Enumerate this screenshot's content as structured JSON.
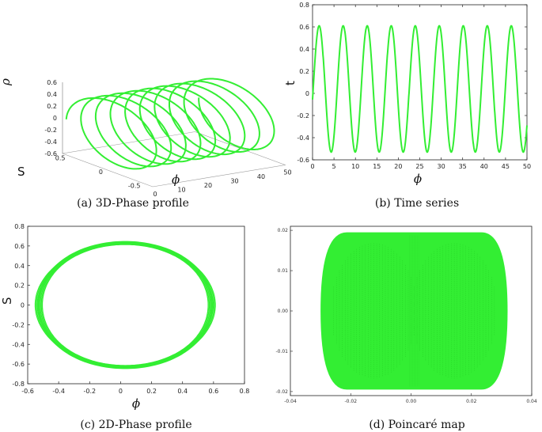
{
  "chart_data": [
    {
      "id": "a",
      "type": "line3d",
      "caption": "(a) 3D-Phase profile",
      "xlabel": "ϕ",
      "ylabel": "S",
      "zlabel": "ρ",
      "xticks": [
        "0",
        "10",
        "20",
        "30",
        "40",
        "50"
      ],
      "yticks": [
        "0.5",
        "0",
        "-0.5"
      ],
      "zticks": [
        "0.6",
        "0.4",
        "0.2",
        "0",
        "-0.2",
        "-0.4",
        "-0.6"
      ],
      "xlim": [
        0,
        50
      ],
      "ylim": [
        -0.6,
        0.6
      ],
      "zlim": [
        -0.6,
        0.6
      ],
      "loops": 9,
      "color": "#33ee33"
    },
    {
      "id": "b",
      "type": "line",
      "caption": "(b) Time series",
      "xlabel": "ϕ",
      "ylabel": "t",
      "xticks": [
        "0",
        "5",
        "10",
        "15",
        "20",
        "25",
        "30",
        "35",
        "40",
        "45",
        "50"
      ],
      "yticks": [
        "0.8",
        "0.6",
        "0.4",
        "0.2",
        "0",
        "-0.2",
        "-0.4",
        "-0.6"
      ],
      "xlim": [
        0,
        50
      ],
      "ylim": [
        -0.6,
        0.8
      ],
      "amplitude_max": 0.61,
      "amplitude_min": -0.53,
      "period": 5.6,
      "color": "#33ee33"
    },
    {
      "id": "c",
      "type": "line",
      "caption": "(c) 2D-Phase profile",
      "xlabel": "ϕ",
      "ylabel": "S",
      "xticks": [
        "-0.6",
        "-0.4",
        "-0.2",
        "0",
        "0.2",
        "0.4",
        "0.6",
        "0.8"
      ],
      "yticks": [
        "0.8",
        "0.6",
        "0.4",
        "0.2",
        "0",
        "-0.2",
        "-0.4",
        "-0.6",
        "-0.8"
      ],
      "xlim": [
        -0.6,
        0.8
      ],
      "ylim": [
        -0.8,
        0.8
      ],
      "center": [
        0.03,
        0.0
      ],
      "radius_x": 0.56,
      "radius_y": 0.63,
      "color": "#33ee33"
    },
    {
      "id": "d",
      "type": "scatter",
      "caption": "(d) Poincaré map",
      "xlabel": "",
      "ylabel": "",
      "xticks": [
        "-0.04",
        "-0.02",
        "0.00",
        "0.02",
        "0.04"
      ],
      "yticks": [
        "0.02",
        "0.01",
        "0.00",
        "-0.01",
        "-0.02"
      ],
      "xlim": [
        -0.04,
        0.04
      ],
      "ylim": [
        -0.021,
        0.021
      ],
      "x_extent": [
        -0.03,
        0.032
      ],
      "y_extent": [
        -0.0195,
        0.0195
      ],
      "color": "#33ee33"
    }
  ]
}
